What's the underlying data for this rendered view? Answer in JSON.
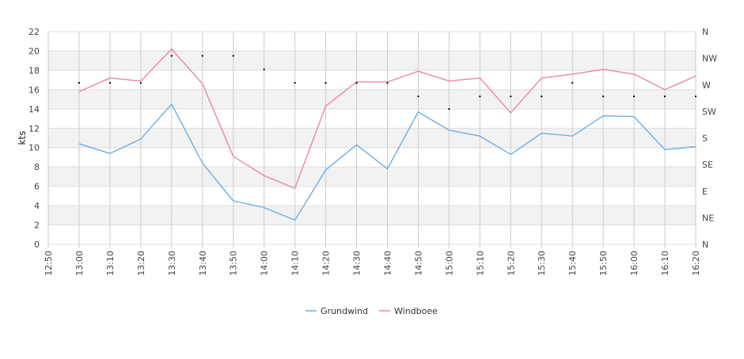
{
  "chart_data": {
    "type": "line",
    "x": [
      "12:50",
      "13:00",
      "13:10",
      "13:20",
      "13:30",
      "13:40",
      "13:50",
      "14:00",
      "14:10",
      "14:20",
      "14:30",
      "14:40",
      "14:50",
      "15:00",
      "15:10",
      "15:20",
      "15:30",
      "15:40",
      "15:50",
      "16:00",
      "16:10",
      "16:20"
    ],
    "ylabel": "kts",
    "ylim": [
      0,
      22
    ],
    "y_ticks": [
      "0",
      "2",
      "4",
      "6",
      "8",
      "10",
      "12",
      "14",
      "16",
      "18",
      "20",
      "22"
    ],
    "y2_ticks": [
      "N",
      "NE",
      "E",
      "SE",
      "S",
      "SW",
      "W",
      "NW",
      "N"
    ],
    "grid": true,
    "legend_position": "bottom",
    "series": [
      {
        "name": "Grundwind",
        "color": "#6aaee8",
        "values": [
          null,
          10.4,
          9.4,
          10.9,
          14.5,
          8.4,
          4.5,
          3.8,
          2.5,
          7.7,
          10.3,
          7.8,
          13.7,
          11.8,
          11.2,
          9.3,
          11.5,
          11.2,
          13.3,
          13.2,
          9.8,
          10.1
        ]
      },
      {
        "name": "Windboee",
        "color": "#e985b4",
        "values": [
          null,
          15.8,
          17.2,
          16.9,
          20.2,
          16.6,
          9.1,
          7.1,
          5.8,
          14.3,
          16.8,
          16.8,
          17.9,
          16.9,
          17.2,
          13.6,
          17.2,
          17.6,
          18.1,
          17.6,
          16.0,
          17.4
        ]
      }
    ],
    "direction_markers": [
      null,
      16.7,
      16.7,
      16.7,
      19.5,
      19.5,
      19.5,
      18.1,
      16.7,
      16.7,
      16.7,
      16.7,
      15.3,
      14.0,
      15.3,
      15.3,
      15.3,
      16.7,
      15.3,
      15.3,
      15.3,
      15.3
    ]
  }
}
